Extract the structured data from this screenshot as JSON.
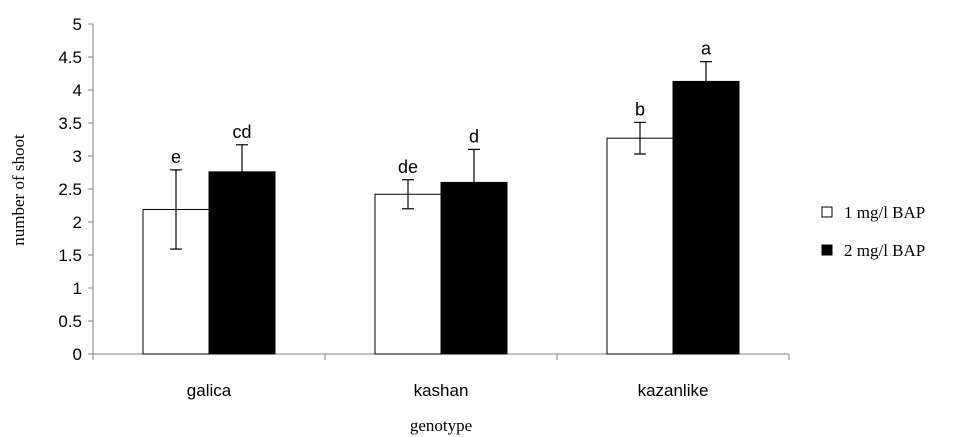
{
  "chart_data": {
    "type": "bar",
    "xlabel": "genotype",
    "ylabel": "number of shoot",
    "ylim": [
      0,
      5
    ],
    "yticks": [
      0,
      0.5,
      1,
      1.5,
      2,
      2.5,
      3,
      3.5,
      4,
      4.5,
      5
    ],
    "ytick_labels": [
      "0",
      "0.5",
      "1",
      "1.5",
      "2",
      "2.5",
      "3",
      "3.5",
      "4",
      "4.5",
      "5"
    ],
    "grid": false,
    "legend_position": "right",
    "categories": [
      "galica",
      "kashan",
      "kazanlike"
    ],
    "series": [
      {
        "name": "1 mg/l BAP",
        "color": "#ffffff",
        "values": [
          2.19,
          2.42,
          3.27
        ],
        "errors": [
          0.6,
          0.22,
          0.24
        ],
        "labels": [
          "e",
          "de",
          "b"
        ]
      },
      {
        "name": "2 mg/l BAP",
        "color": "#000000",
        "values": [
          2.76,
          2.6,
          4.13
        ],
        "errors": [
          0.41,
          0.5,
          0.3
        ],
        "labels": [
          "cd",
          "d",
          "a"
        ]
      }
    ]
  }
}
